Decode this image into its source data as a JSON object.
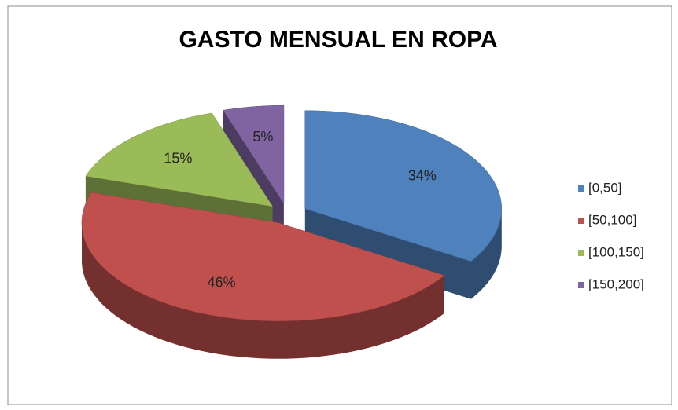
{
  "chart_data": {
    "type": "pie",
    "title": "GASTO MENSUAL EN ROPA",
    "categories": [
      "[0,50]",
      "[50,100]",
      "[100,150]",
      "[150,200]"
    ],
    "values": [
      34,
      46,
      15,
      5
    ],
    "value_labels": [
      "34%",
      "46%",
      "15%",
      "5%"
    ],
    "colors": [
      "#4f81bd",
      "#c0504d",
      "#9bbb59",
      "#8064a2"
    ],
    "legend": "right"
  }
}
